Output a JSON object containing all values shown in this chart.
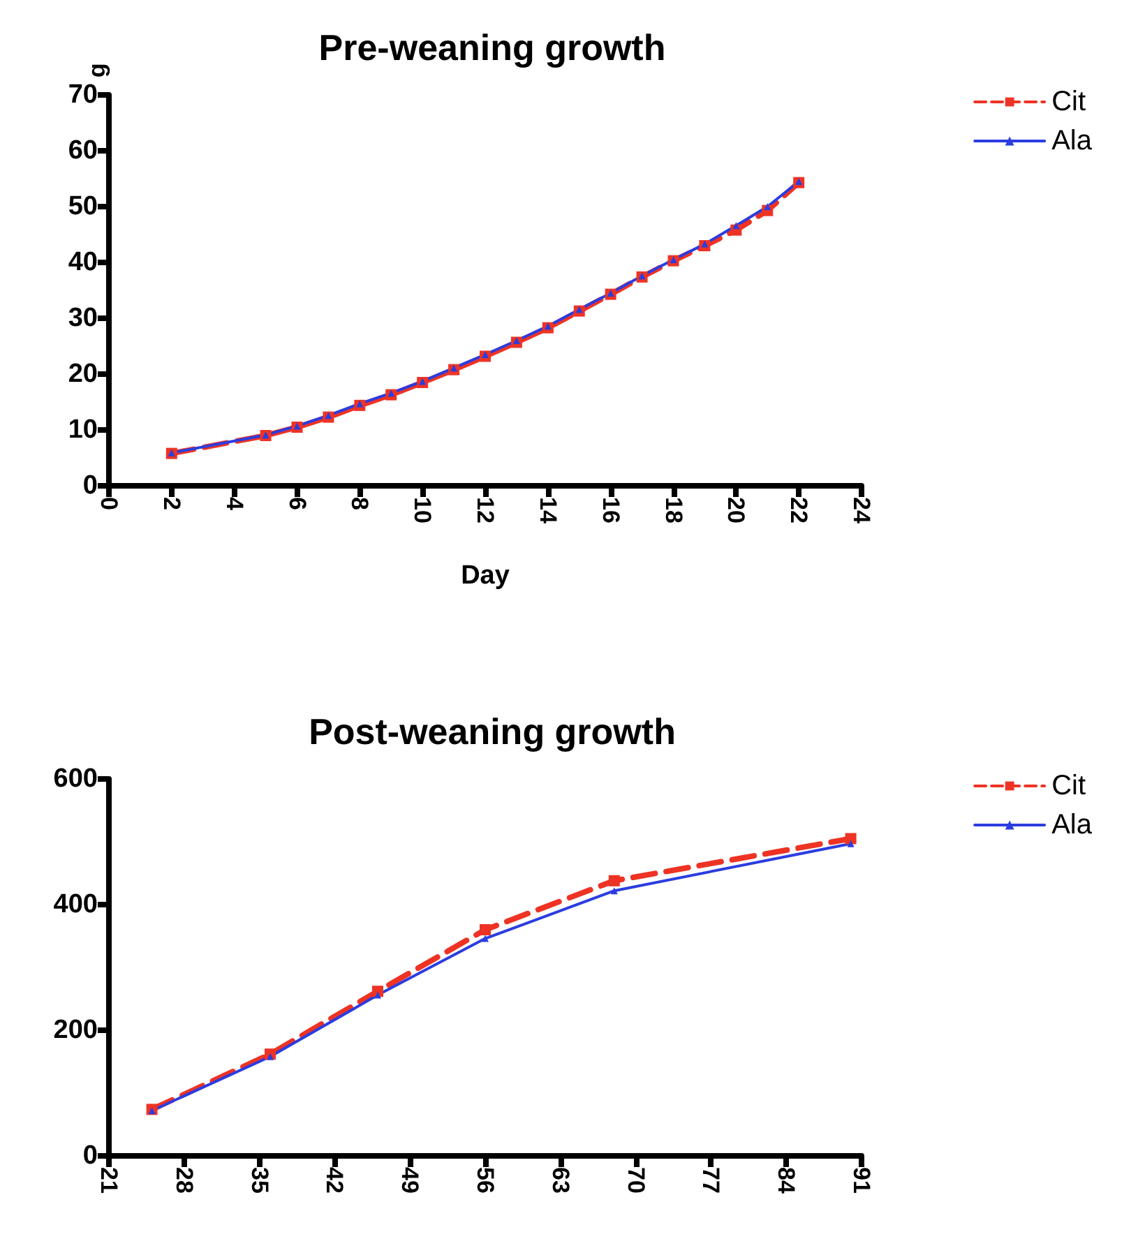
{
  "chart_data": [
    {
      "type": "line",
      "title": "Pre-weaning growth",
      "xlabel": "Day",
      "ylabel": "g",
      "x": [
        2,
        5,
        6,
        7,
        8,
        9,
        10,
        11,
        12,
        13,
        14,
        15,
        16,
        17,
        18,
        19,
        20,
        21,
        22
      ],
      "series": [
        {
          "name": "Cit",
          "color": "#ee3324",
          "line_style": "dashed",
          "marker": "square",
          "values": [
            5.8,
            9,
            10.5,
            12.3,
            14.4,
            16.3,
            18.5,
            20.8,
            23.2,
            25.7,
            28.3,
            31.3,
            34.3,
            37.4,
            40.3,
            43,
            45.8,
            49.3,
            54.3
          ]
        },
        {
          "name": "Ala",
          "color": "#2b3de0",
          "line_style": "solid",
          "marker": "triangle",
          "values": [
            5.9,
            9.1,
            10.7,
            12.6,
            14.7,
            16.6,
            18.7,
            21.1,
            23.5,
            26,
            28.6,
            31.6,
            34.5,
            37.6,
            40.5,
            43.3,
            46.6,
            50,
            54.5
          ]
        }
      ],
      "xlim": [
        0,
        24
      ],
      "xticks": [
        0,
        2,
        4,
        6,
        8,
        10,
        12,
        14,
        16,
        18,
        20,
        22,
        24
      ],
      "ylim": [
        0,
        70
      ],
      "yticks": [
        0,
        10,
        20,
        30,
        40,
        50,
        60,
        70
      ],
      "grid": false,
      "legend": "top right"
    },
    {
      "type": "line",
      "title": "Post-weaning growth",
      "x": [
        25,
        36,
        46,
        56,
        68,
        90
      ],
      "series": [
        {
          "name": "Cit",
          "color": "#ee3324",
          "line_style": "dashed",
          "marker": "square",
          "values": [
            74,
            162,
            262,
            360,
            438,
            505
          ]
        },
        {
          "name": "Ala",
          "color": "#2b3de0",
          "line_style": "solid",
          "marker": "triangle",
          "values": [
            72,
            158,
            256,
            346,
            422,
            497
          ]
        }
      ],
      "xlim": [
        21,
        91
      ],
      "xticks": [
        21,
        28,
        35,
        42,
        49,
        56,
        63,
        70,
        77,
        84,
        91
      ],
      "ylim": [
        0,
        600
      ],
      "yticks": [
        0,
        200,
        400,
        600
      ],
      "grid": false,
      "legend": "top right"
    }
  ]
}
